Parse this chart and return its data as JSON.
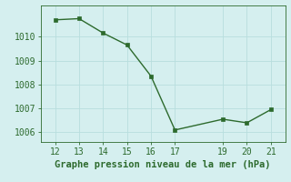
{
  "x": [
    12,
    13,
    14,
    15,
    16,
    17,
    19,
    20,
    21
  ],
  "y": [
    1010.7,
    1010.75,
    1010.15,
    1009.65,
    1008.35,
    1006.1,
    1006.55,
    1006.4,
    1006.95
  ],
  "line_color": "#2d6a2d",
  "marker": "s",
  "marker_size": 2.5,
  "bg_color": "#d5efef",
  "grid_color": "#b8dede",
  "xlabel": "Graphe pression niveau de la mer (hPa)",
  "xlabel_color": "#2d6a2d",
  "xlabel_fontsize": 7.5,
  "tick_color": "#2d6a2d",
  "tick_fontsize": 7,
  "ylim": [
    1005.6,
    1011.3
  ],
  "xlim": [
    11.4,
    21.6
  ],
  "yticks": [
    1006,
    1007,
    1008,
    1009,
    1010
  ],
  "xticks": [
    12,
    13,
    14,
    15,
    16,
    17,
    19,
    20,
    21
  ],
  "linewidth": 1.0
}
